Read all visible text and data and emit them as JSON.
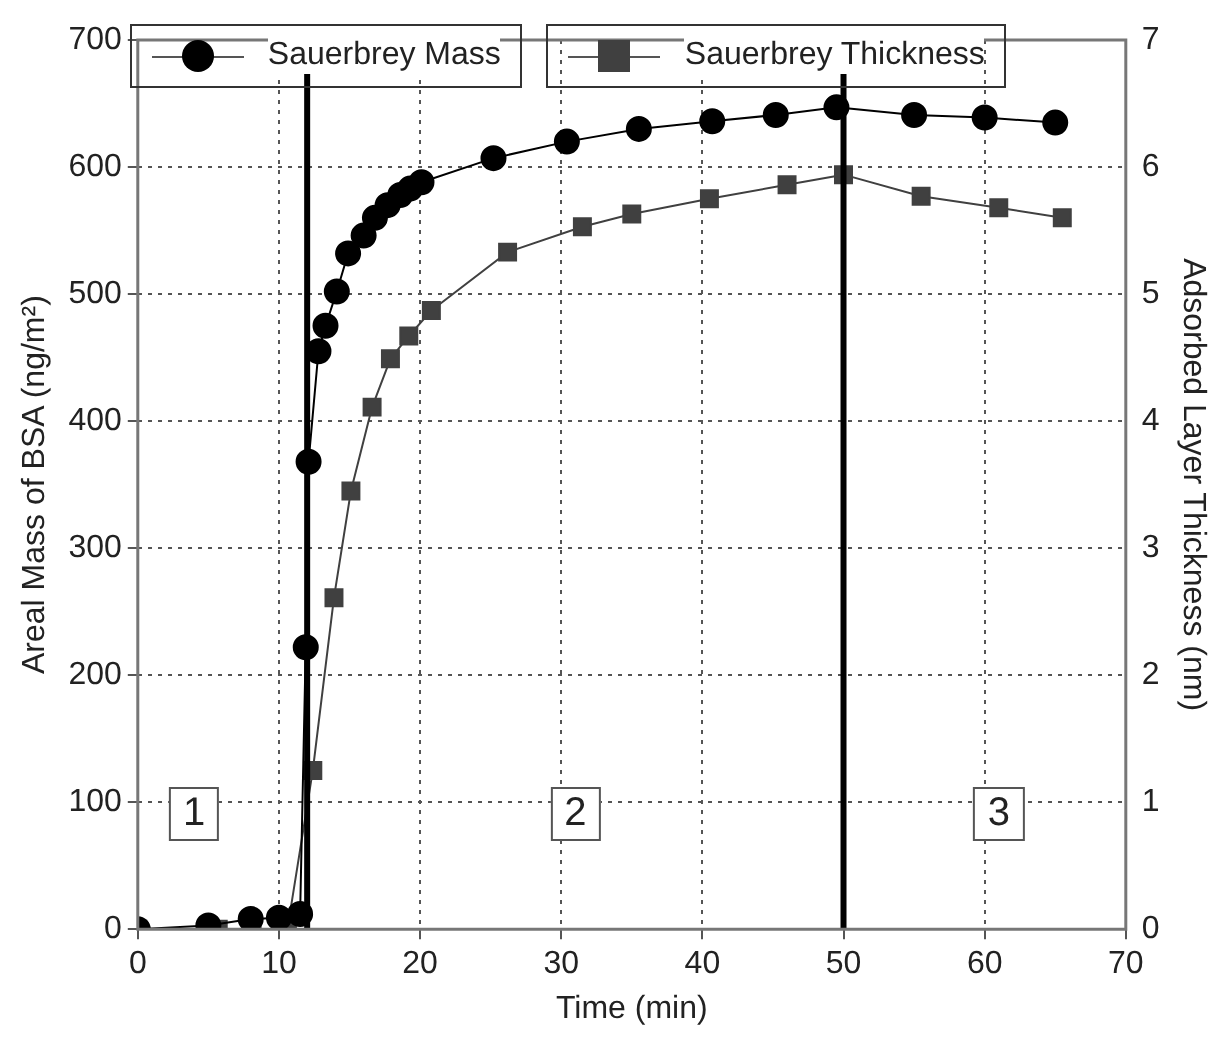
{
  "chart_data": {
    "type": "line",
    "xlabel": "Time (min)",
    "ylabel": "Areal Mass of BSA (ng/m²)",
    "y2label": "Adsorbed Layer Thickness (nm)",
    "series": [
      {
        "name": "Sauerbrey Mass",
        "color": "#000000",
        "marker": "circle",
        "x": [
          0,
          5,
          8,
          10,
          11.5,
          11.9,
          12.1,
          12.8,
          13.3,
          14.1,
          14.9,
          16,
          16.8,
          17.7,
          18.6,
          19.3,
          20.1,
          25.2,
          30.4,
          35.5,
          40.7,
          45.2,
          49.5,
          55,
          60,
          65
        ],
        "values": [
          0,
          3,
          8,
          9,
          12,
          222,
          368,
          455,
          475,
          502,
          532,
          546,
          560,
          570,
          578,
          583,
          588,
          607,
          620,
          630,
          636,
          641,
          647,
          641,
          639,
          635
        ]
      },
      {
        "name": "Sauerbrey Thickness",
        "color": "#404040",
        "marker": "square",
        "axis": "y2",
        "x": [
          0,
          5.7,
          8.1,
          10.6,
          12.4,
          13.9,
          15.1,
          16.6,
          17.9,
          19.2,
          20.8,
          26.2,
          31.5,
          35,
          40.5,
          46,
          50,
          55.5,
          61,
          65.5
        ],
        "values": [
          0,
          0,
          0,
          0,
          1.25,
          2.61,
          3.45,
          4.11,
          4.49,
          4.67,
          4.87,
          5.33,
          5.53,
          5.63,
          5.75,
          5.86,
          5.94,
          5.77,
          5.68,
          5.6
        ]
      }
    ],
    "xlim": [
      0,
      70
    ],
    "xticks": [
      0,
      10,
      20,
      30,
      40,
      50,
      60,
      70
    ],
    "ylim": [
      0,
      700
    ],
    "yticks": [
      0,
      100,
      200,
      300,
      400,
      500,
      600,
      700
    ],
    "y2lim": [
      0,
      7
    ],
    "y2ticks": [
      0,
      1,
      2,
      3,
      4,
      5,
      6,
      7
    ],
    "ref_lines": [
      {
        "axis": "x",
        "value": 12,
        "color": "#000000"
      },
      {
        "axis": "x",
        "value": 50,
        "color": "#000000"
      }
    ],
    "annotations": [
      {
        "text": "1",
        "x": 4,
        "y": 90
      },
      {
        "text": "2",
        "x": 31,
        "y": 90
      },
      {
        "text": "3",
        "x": 61,
        "y": 90
      }
    ],
    "grid": true,
    "legend": "top",
    "line_style": "solid"
  }
}
